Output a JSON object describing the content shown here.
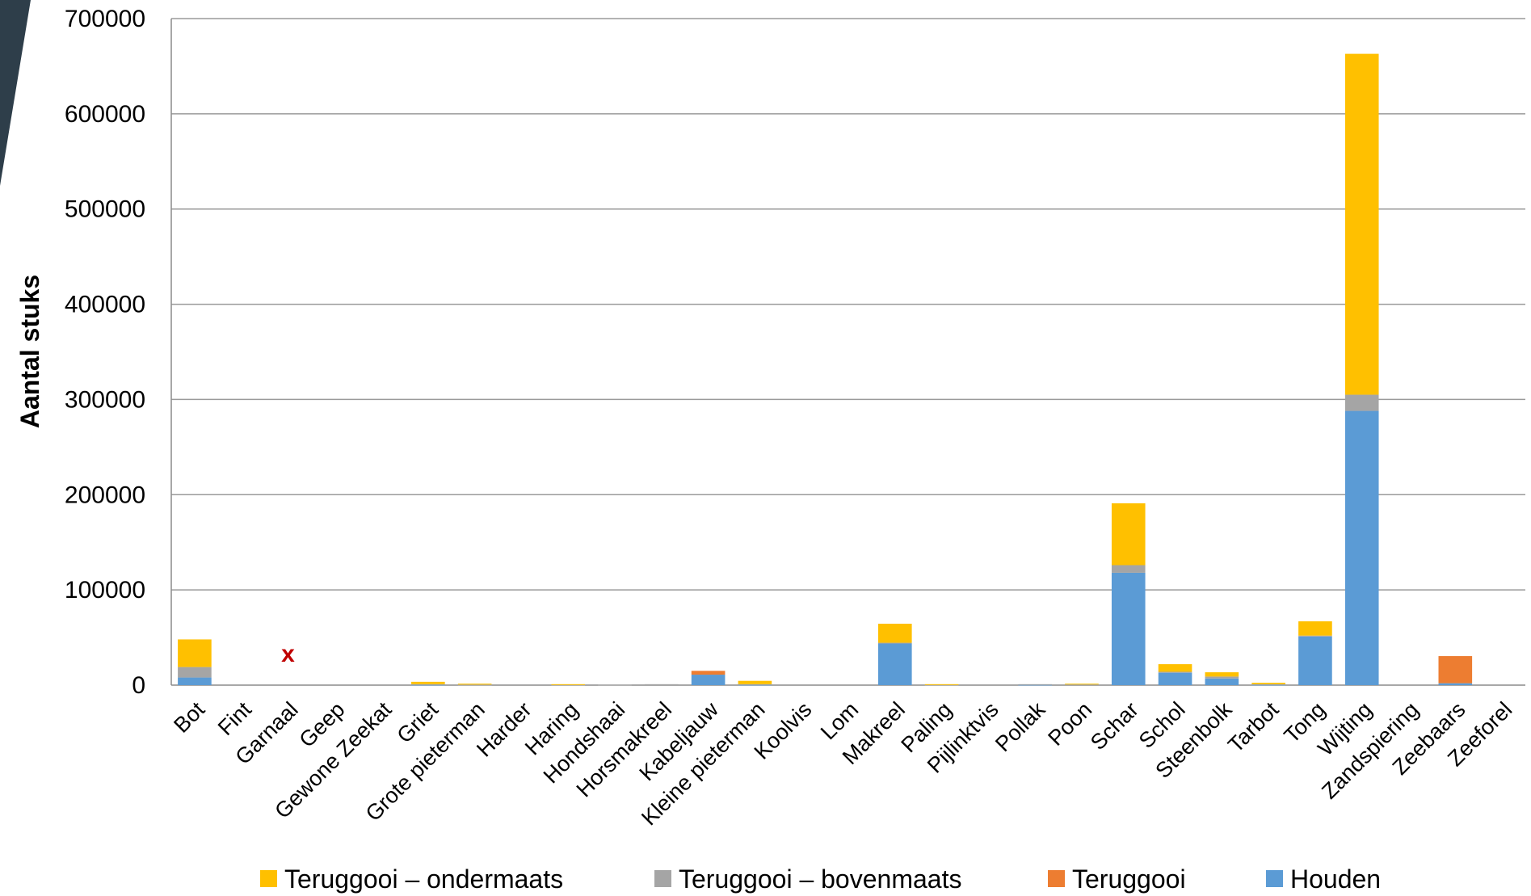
{
  "chart_data": {
    "type": "bar",
    "stacked": true,
    "ylabel": "Aantal stuks",
    "xlabel": "",
    "ylim": [
      0,
      700000
    ],
    "yticks": [
      0,
      100000,
      200000,
      300000,
      400000,
      500000,
      600000,
      700000
    ],
    "grid": true,
    "legend_position": "bottom",
    "categories": [
      "Bot",
      "Fint",
      "Garnaal",
      "Geep",
      "Gewone Zeekat",
      "Griet",
      "Grote pieterman",
      "Harder",
      "Haring",
      "Hondshaai",
      "Horsmakreel",
      "Kabeljauw",
      "Kleine pieterman",
      "Koolvis",
      "Lom",
      "Makreel",
      "Paling",
      "Pijlinktvis",
      "Pollak",
      "Poon",
      "Schar",
      "Schol",
      "Steenbolk",
      "Tarbot",
      "Tong",
      "Wijting",
      "Zandspiering",
      "Zeebaars",
      "Zeeforel"
    ],
    "series": [
      {
        "name": "Houden",
        "color": "#5B9BD5",
        "values": [
          8000,
          0,
          0,
          0,
          0,
          500,
          0,
          0,
          0,
          0,
          0,
          11000,
          500,
          0,
          0,
          44000,
          0,
          0,
          500,
          0,
          118000,
          13000,
          7000,
          500,
          51000,
          288000,
          0,
          2000,
          0
        ]
      },
      {
        "name": "Teruggooi",
        "color": "#ED7D31",
        "values": [
          0,
          0,
          0,
          0,
          0,
          0,
          0,
          0,
          0,
          0,
          0,
          4000,
          0,
          0,
          0,
          0,
          0,
          0,
          0,
          0,
          0,
          0,
          0,
          0,
          0,
          0,
          0,
          28500,
          0
        ]
      },
      {
        "name": "Teruggooi – bovenmaats",
        "color": "#A5A5A5",
        "values": [
          11000,
          0,
          0,
          0,
          0,
          500,
          500,
          0,
          500,
          500,
          1000,
          0,
          500,
          0,
          0,
          500,
          500,
          0,
          500,
          1000,
          8000,
          1000,
          2000,
          500,
          1000,
          17000,
          0,
          0,
          0
        ]
      },
      {
        "name": "Teruggooi – ondermaats",
        "color": "#FFC000",
        "values": [
          29000,
          0,
          0,
          0,
          0,
          2500,
          1000,
          0,
          500,
          0,
          0,
          0,
          3500,
          0,
          0,
          20000,
          500,
          0,
          0,
          500,
          65000,
          8000,
          4500,
          1500,
          15000,
          358000,
          0,
          0,
          0
        ]
      }
    ],
    "annotations": [
      {
        "category": "Garnaal",
        "text": "x",
        "color": "#C00000",
        "y": 35000
      }
    ]
  },
  "decor": {
    "corner_shape_color": "#2E3E4A"
  }
}
